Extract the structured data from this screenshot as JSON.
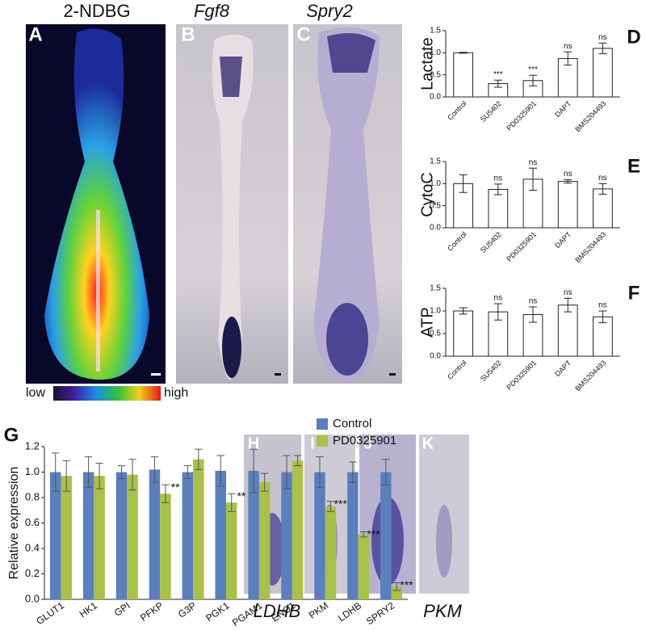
{
  "images": [
    {
      "letter": "A",
      "title": "2-NDBG",
      "scale_low": "low",
      "scale_high": "high"
    },
    {
      "letter": "B",
      "title": "Fgf8"
    },
    {
      "letter": "C",
      "title": "Spry2"
    },
    {
      "letter": "H"
    },
    {
      "letter": "I"
    },
    {
      "letter": "J"
    },
    {
      "letter": "K"
    }
  ],
  "image_captions": [
    "LDHB",
    "PKM"
  ],
  "chart_data": [
    {
      "type": "bar",
      "panel": "D",
      "ylabel": "Lactate",
      "categories": [
        "Control",
        "SU5402",
        "PD0325901",
        "DAPT",
        "BMS204493"
      ],
      "series": [
        {
          "name": null,
          "color": "#ffffff",
          "values": [
            1.0,
            0.3,
            0.37,
            0.87,
            1.1
          ],
          "errors": [
            0.01,
            0.08,
            0.12,
            0.15,
            0.12
          ],
          "annotations": [
            null,
            "***",
            "***",
            "ns",
            "ns"
          ]
        }
      ],
      "ylim": [
        0,
        1.5
      ],
      "yticks": [
        {
          "value": 0,
          "label": "0.0"
        },
        0.5,
        {
          "value": 1,
          "label": "1.0"
        },
        1.5
      ]
    },
    {
      "type": "bar",
      "panel": "E",
      "ylabel": "CytoC",
      "categories": [
        "Control",
        "SU5402",
        "PD0325901",
        "DAPT",
        "BMS204493"
      ],
      "series": [
        {
          "name": null,
          "color": "#ffffff",
          "values": [
            1.0,
            0.87,
            1.1,
            1.05,
            0.88
          ],
          "errors": [
            0.2,
            0.12,
            0.25,
            0.04,
            0.12
          ],
          "annotations": [
            null,
            "ns",
            "ns",
            "ns",
            "ns"
          ]
        }
      ],
      "ylim": [
        0,
        1.5
      ],
      "yticks": [
        {
          "value": 0,
          "label": "0.0"
        },
        0.5,
        {
          "value": 1,
          "label": "1.0"
        },
        1.5
      ]
    },
    {
      "type": "bar",
      "panel": "F",
      "ylabel": "ATP",
      "categories": [
        "Control",
        "SU5402",
        "PD0325901",
        "DAPT",
        "BMS204493"
      ],
      "series": [
        {
          "name": null,
          "color": "#ffffff",
          "values": [
            1.0,
            0.98,
            0.92,
            1.13,
            0.87
          ],
          "errors": [
            0.07,
            0.18,
            0.17,
            0.15,
            0.13
          ],
          "annotations": [
            null,
            "ns",
            "ns",
            "ns",
            "ns"
          ]
        }
      ],
      "ylim": [
        0,
        1.5
      ],
      "yticks": [
        {
          "value": 0,
          "label": "0.0"
        },
        0.5,
        {
          "value": 1,
          "label": "1.0"
        },
        1.5
      ]
    },
    {
      "type": "bar",
      "panel": "G",
      "ylabel": "Relative expression",
      "legend": "top-right",
      "categories": [
        "GLUT1",
        "HK1",
        "GPI",
        "PFKP",
        "G3P",
        "PGK1",
        "PGAM1",
        "ENO1",
        "PKM",
        "LDHB",
        "SPRY2"
      ],
      "series": [
        {
          "name": "Control",
          "color": "#5b7fbd",
          "values": [
            1.0,
            1.0,
            1.0,
            1.02,
            1.0,
            1.01,
            1.01,
            1.0,
            1.0,
            1.0,
            1.0
          ],
          "errors": [
            0.15,
            0.12,
            0.05,
            0.1,
            0.05,
            0.12,
            0.17,
            0.13,
            0.12,
            0.08,
            0.1
          ],
          "annotations": [
            null,
            null,
            null,
            null,
            null,
            null,
            null,
            null,
            null,
            null,
            null
          ]
        },
        {
          "name": "PD0325901",
          "color": "#a9c04a",
          "values": [
            0.97,
            0.97,
            0.98,
            0.83,
            1.1,
            0.76,
            0.92,
            1.09,
            0.73,
            0.51,
            0.1
          ],
          "errors": [
            0.12,
            0.1,
            0.12,
            0.07,
            0.08,
            0.07,
            0.07,
            0.04,
            0.04,
            0.02,
            0.03
          ],
          "annotations": [
            null,
            null,
            null,
            "**",
            null,
            "**",
            null,
            null,
            "***",
            "***",
            "***"
          ]
        }
      ],
      "ylim": [
        0,
        1.2
      ],
      "yticks": [
        {
          "value": 0,
          "label": "0.0"
        },
        0.2,
        0.4,
        0.6,
        0.8,
        {
          "value": 1,
          "label": "1.0"
        },
        1.2
      ]
    }
  ]
}
